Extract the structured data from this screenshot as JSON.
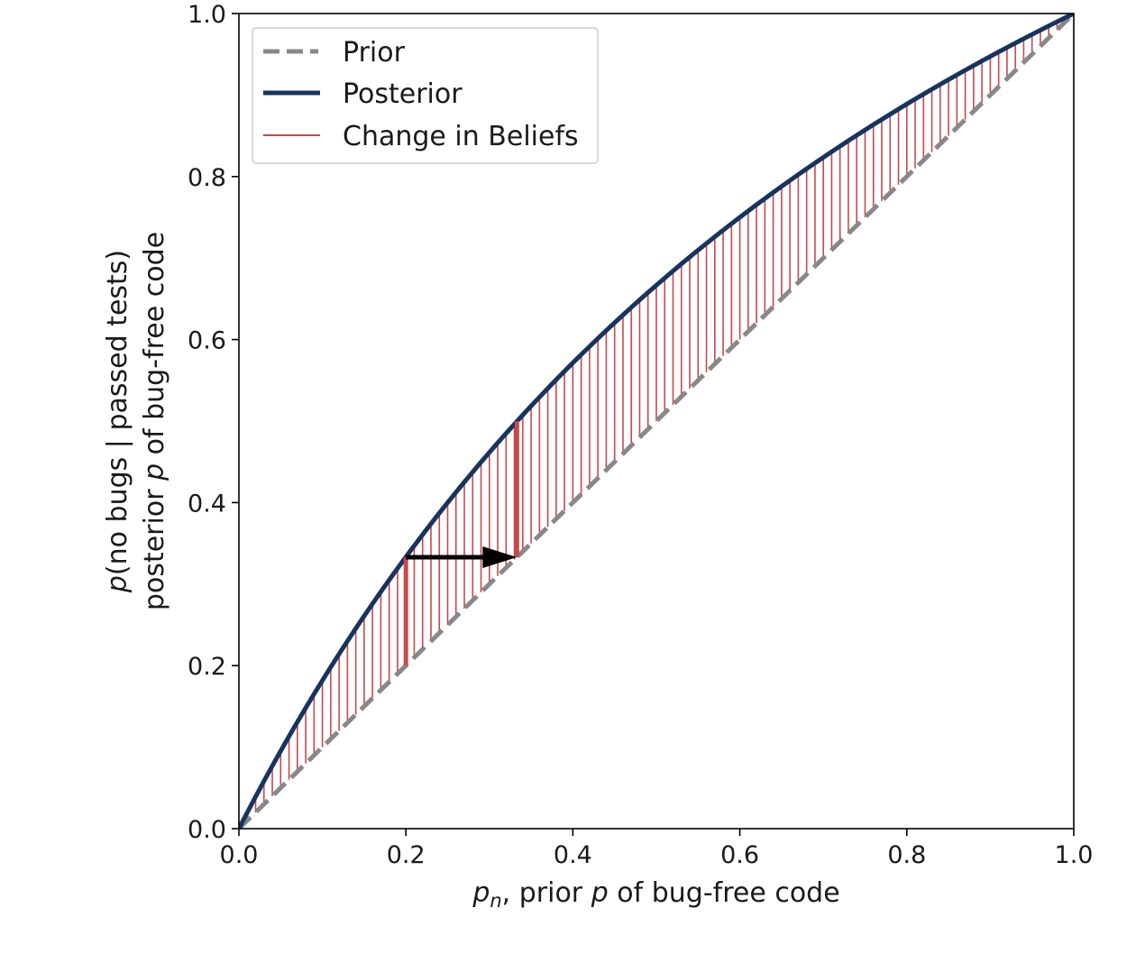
{
  "chart_data": {
    "type": "line",
    "xlim": [
      0.0,
      1.0
    ],
    "ylim": [
      0.0,
      1.0
    ],
    "x_ticks": [
      "0.0",
      "0.2",
      "0.4",
      "0.6",
      "0.8",
      "1.0"
    ],
    "y_ticks": [
      "0.0",
      "0.2",
      "0.4",
      "0.6",
      "0.8",
      "1.0"
    ],
    "xlabel": {
      "pre_var": "p",
      "pre_sub": "n",
      "mid": ", prior ",
      "var": "p",
      "post": " of bug-free code"
    },
    "ylabel_line1": {
      "var": "p",
      "text": "(no bugs | passed tests)"
    },
    "ylabel_line2": {
      "pre": "posterior ",
      "var": "p",
      "post": " of bug-free code"
    },
    "grid": false,
    "legend_position": "top-left",
    "likelihood_ratio": 2,
    "series": [
      {
        "name": "Prior",
        "formula": "y = x",
        "x": [
          0.0,
          1.0
        ],
        "y": [
          0.0,
          1.0
        ],
        "style": "dashed",
        "color": "#888888"
      },
      {
        "name": "Posterior",
        "formula": "y = 2x / (1 + x)",
        "x": [
          0.0,
          0.1,
          0.2,
          0.3,
          0.4,
          0.5,
          0.6,
          0.7,
          0.8,
          0.9,
          1.0
        ],
        "y": [
          0.0,
          0.182,
          0.333,
          0.462,
          0.571,
          0.667,
          0.75,
          0.824,
          0.889,
          0.947,
          1.0
        ],
        "style": "solid",
        "color": "#17345e"
      },
      {
        "name": "Change in Beliefs",
        "type": "vlines",
        "x_start": 0.01,
        "x_step": 0.01,
        "x_end": 0.99,
        "color": "#c8494a"
      }
    ],
    "annotations": [
      {
        "type": "highlight_vline",
        "x": 0.2,
        "y_from": 0.2,
        "y_to": 0.333,
        "color": "#c8494a"
      },
      {
        "type": "highlight_vline",
        "x": 0.333,
        "y_from": 0.333,
        "y_to": 0.5,
        "color": "#c8494a"
      },
      {
        "type": "arrow",
        "from": [
          0.2,
          0.333
        ],
        "to": [
          0.333,
          0.333
        ],
        "color": "#000000"
      }
    ]
  }
}
